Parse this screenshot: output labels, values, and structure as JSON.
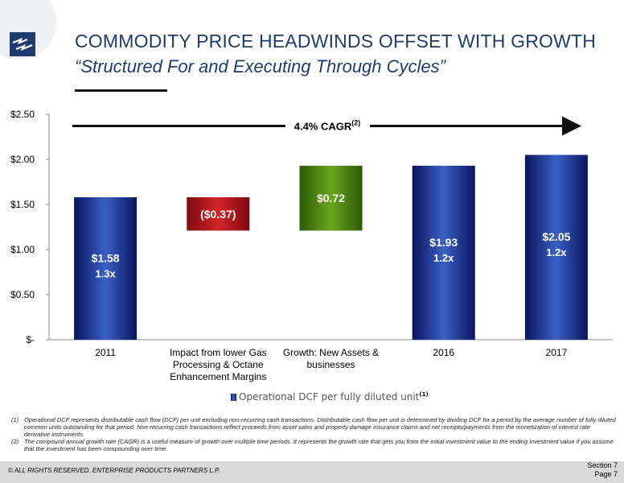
{
  "header": {
    "title": "COMMODITY PRICE HEADWINDS OFFSET WITH GROWTH",
    "subtitle": "“Structured For and Executing Through Cycles”"
  },
  "colors": {
    "title": "#1f3b6e",
    "bar_blue": "#1a36a8",
    "bar_red": "#b31219",
    "bar_green": "#4a8a0f",
    "logo": "#1f3b6e"
  },
  "chart_data": {
    "type": "bar",
    "subtype": "waterfall",
    "categories": [
      "2011",
      "Impact from lower Gas Processing & Octane Enhancement Margins",
      "Growth: New Assets & businesses",
      "2016",
      "2017"
    ],
    "category_lines": [
      [
        "2011"
      ],
      [
        "Impact from lower Gas",
        "Processing & Octane",
        "Enhancement Margins"
      ],
      [
        "Growth: New Assets &",
        "businesses"
      ],
      [
        "2016"
      ],
      [
        "2017"
      ]
    ],
    "bars": [
      {
        "category": "2011",
        "kind": "total",
        "start": 0,
        "end": 1.58,
        "label": "$1.58",
        "coverage": "1.3x"
      },
      {
        "category": "Impact",
        "kind": "decrease",
        "start": 1.21,
        "end": 1.58,
        "label": "($0.37)",
        "coverage": ""
      },
      {
        "category": "Growth",
        "kind": "increase",
        "start": 1.21,
        "end": 1.93,
        "label": "$0.72",
        "coverage": ""
      },
      {
        "category": "2016",
        "kind": "total",
        "start": 0,
        "end": 1.93,
        "label": "$1.93",
        "coverage": "1.2x"
      },
      {
        "category": "2017",
        "kind": "total",
        "start": 0,
        "end": 2.05,
        "label": "$2.05",
        "coverage": "1.2x"
      }
    ],
    "ylim": [
      0,
      2.5
    ],
    "yticks": [
      0,
      0.5,
      1.0,
      1.5,
      2.0,
      2.5
    ],
    "ytick_labels": [
      "$-",
      "$0.50",
      "$1.00",
      "$1.50",
      "$2.00",
      "$2.50"
    ],
    "annotation": {
      "text": "4.4% CAGR",
      "superscript": "(2)",
      "at_value": 2.37
    },
    "legend": {
      "label": "Operational DCF per fully diluted unit",
      "superscript": "(1)",
      "position": "bottom"
    },
    "grid": false
  },
  "footnotes": [
    {
      "num": "(1)",
      "text": "Operational DCF represents distributable cash flow (DCF) per unit excluding non-recurring cash transactions.  Distributable cash flow per unit is determined by dividing DCF for a period by the average number of fully diluted common units outstanding for that period.  Non-recurring cash transactions reflect proceeds from asset sales and property damage insurance claims and net receipts/payments from the monetization of interest rate derivative instruments."
    },
    {
      "num": "(2)",
      "text": "The compound annual growth rate (CAGR) is a useful measure of growth over multiple time periods.  It represents the growth rate that gets you from the initial investment value to the ending investment value if you assume that the investment has been compounding over time."
    }
  ],
  "footer": {
    "copyright": "© ALL RIGHTS RESERVED. ENTERPRISE PRODUCTS PARTNERS L.P.",
    "section": "Section 7",
    "page": "Page 7"
  }
}
